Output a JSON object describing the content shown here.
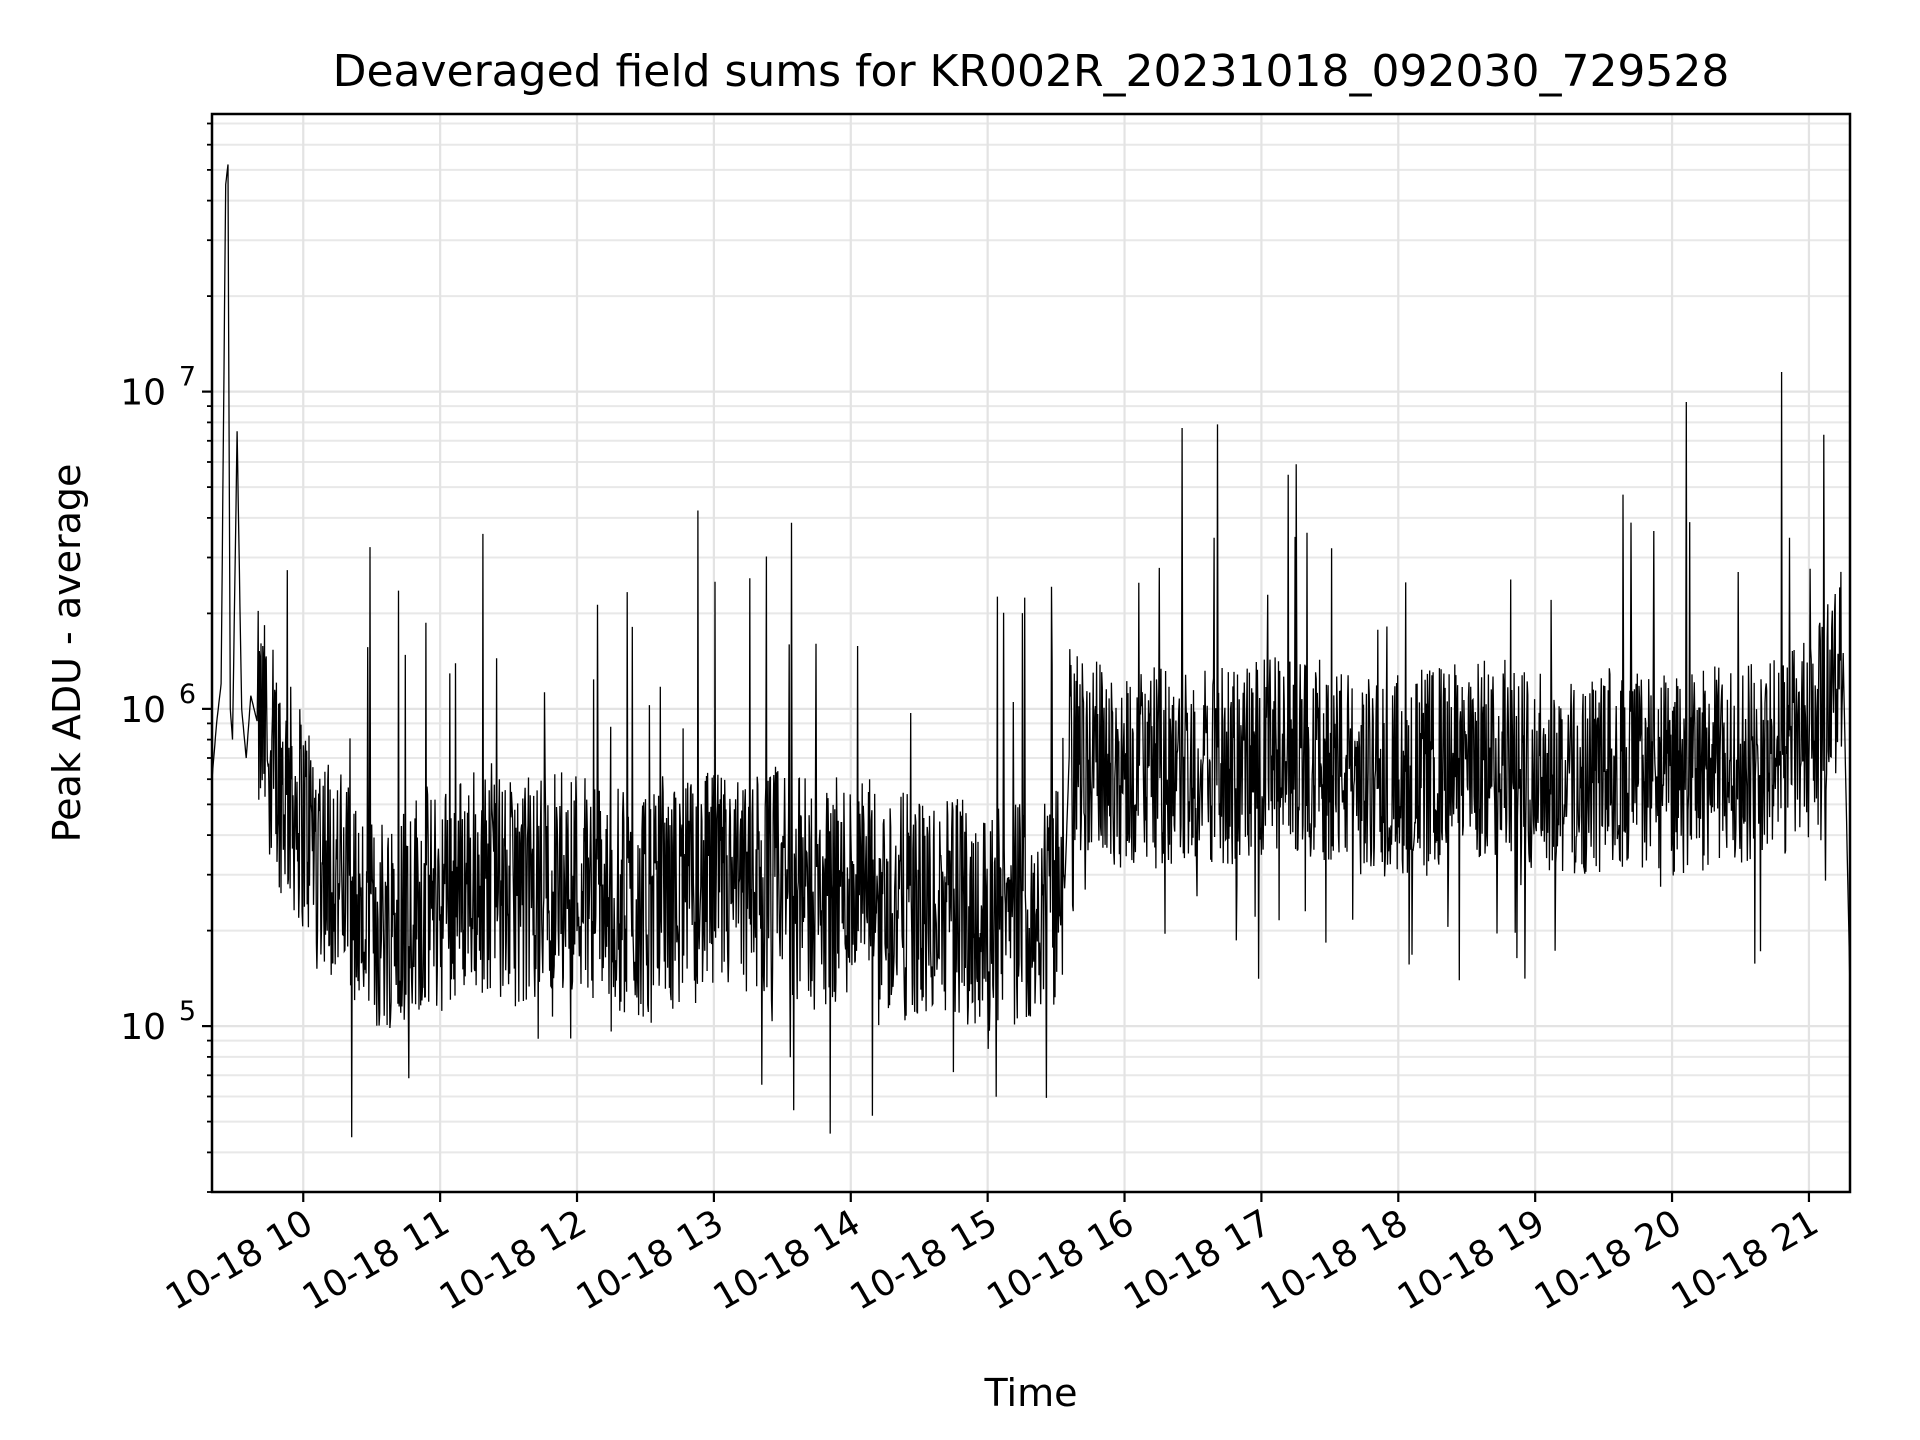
{
  "chart_data": {
    "type": "line",
    "title": "Deaveraged field sums for KR002R_20231018_092030_729528",
    "xlabel": "Time",
    "ylabel": "Peak ADU - average",
    "xlim": [
      "2023-10-18 09:20",
      "2023-10-18 21:18"
    ],
    "ylim": [
      30000,
      75000000
    ],
    "yscale": "log",
    "grid": true,
    "line_color": "#000000",
    "x_ticks": [
      {
        "time": "2023-10-18 10:00",
        "label": "10-18 10"
      },
      {
        "time": "2023-10-18 11:00",
        "label": "10-18 11"
      },
      {
        "time": "2023-10-18 12:00",
        "label": "10-18 12"
      },
      {
        "time": "2023-10-18 13:00",
        "label": "10-18 13"
      },
      {
        "time": "2023-10-18 14:00",
        "label": "10-18 14"
      },
      {
        "time": "2023-10-18 15:00",
        "label": "10-18 15"
      },
      {
        "time": "2023-10-18 16:00",
        "label": "10-18 16"
      },
      {
        "time": "2023-10-18 17:00",
        "label": "10-18 17"
      },
      {
        "time": "2023-10-18 18:00",
        "label": "10-18 18"
      },
      {
        "time": "2023-10-18 19:00",
        "label": "10-18 19"
      },
      {
        "time": "2023-10-18 20:00",
        "label": "10-18 20"
      },
      {
        "time": "2023-10-18 21:00",
        "label": "10-18 21"
      }
    ],
    "y_ticks": [
      {
        "value": 100000,
        "base": "10",
        "exp": "5"
      },
      {
        "value": 1000000,
        "base": "10",
        "exp": "6"
      },
      {
        "value": 10000000,
        "base": "10",
        "exp": "7"
      }
    ],
    "series": [
      {
        "x": [
          "2023-10-18 09:20",
          "2023-10-18 09:22",
          "2023-10-18 09:24",
          "2023-10-18 09:26",
          "2023-10-18 09:27",
          "2023-10-18 09:28",
          "2023-10-18 09:29",
          "2023-10-18 09:31",
          "2023-10-18 09:33",
          "2023-10-18 09:35",
          "2023-10-18 09:37",
          "2023-10-18 09:40",
          "2023-10-18 09:45",
          "2023-10-18 09:50",
          "2023-10-18 10:00",
          "2023-10-18 10:15",
          "2023-10-18 10:30",
          "2023-10-18 10:45",
          "2023-10-18 11:00",
          "2023-10-18 11:15",
          "2023-10-18 11:30",
          "2023-10-18 11:45",
          "2023-10-18 12:00",
          "2023-10-18 12:15",
          "2023-10-18 12:30",
          "2023-10-18 12:45",
          "2023-10-18 13:00",
          "2023-10-18 13:15",
          "2023-10-18 13:30",
          "2023-10-18 13:45",
          "2023-10-18 14:00",
          "2023-10-18 14:15",
          "2023-10-18 14:30",
          "2023-10-18 14:45",
          "2023-10-18 15:00",
          "2023-10-18 15:15",
          "2023-10-18 15:30",
          "2023-10-18 15:34",
          "2023-10-18 15:36",
          "2023-10-18 15:45",
          "2023-10-18 16:00",
          "2023-10-18 16:15",
          "2023-10-18 16:30",
          "2023-10-18 16:45",
          "2023-10-18 17:00",
          "2023-10-18 17:15",
          "2023-10-18 17:30",
          "2023-10-18 17:45",
          "2023-10-18 18:00",
          "2023-10-18 18:15",
          "2023-10-18 18:30",
          "2023-10-18 18:45",
          "2023-10-18 19:00",
          "2023-10-18 19:15",
          "2023-10-18 19:30",
          "2023-10-18 19:45",
          "2023-10-18 20:00",
          "2023-10-18 20:15",
          "2023-10-18 20:30",
          "2023-10-18 20:45",
          "2023-10-18 21:00",
          "2023-10-18 21:05",
          "2023-10-18 21:10",
          "2023-10-18 21:15",
          "2023-10-18 21:18"
        ],
        "y": [
          600000,
          900000,
          1200000,
          45000000,
          52000000,
          1000000,
          800000,
          7500000,
          1000000,
          700000,
          1100000,
          900000,
          800000,
          600000,
          450000,
          300000,
          200000,
          250000,
          250000,
          300000,
          260000,
          280000,
          300000,
          250000,
          230000,
          260000,
          280000,
          260000,
          300000,
          250000,
          280000,
          250000,
          230000,
          240000,
          220000,
          230000,
          250000,
          300000,
          800000,
          700000,
          650000,
          650000,
          680000,
          650000,
          700000,
          700000,
          690000,
          600000,
          620000,
          650000,
          680000,
          700000,
          650000,
          600000,
          620000,
          650000,
          600000,
          650000,
          680000,
          700000,
          800000,
          900000,
          1200000,
          1500000,
          130000
        ]
      }
    ]
  }
}
